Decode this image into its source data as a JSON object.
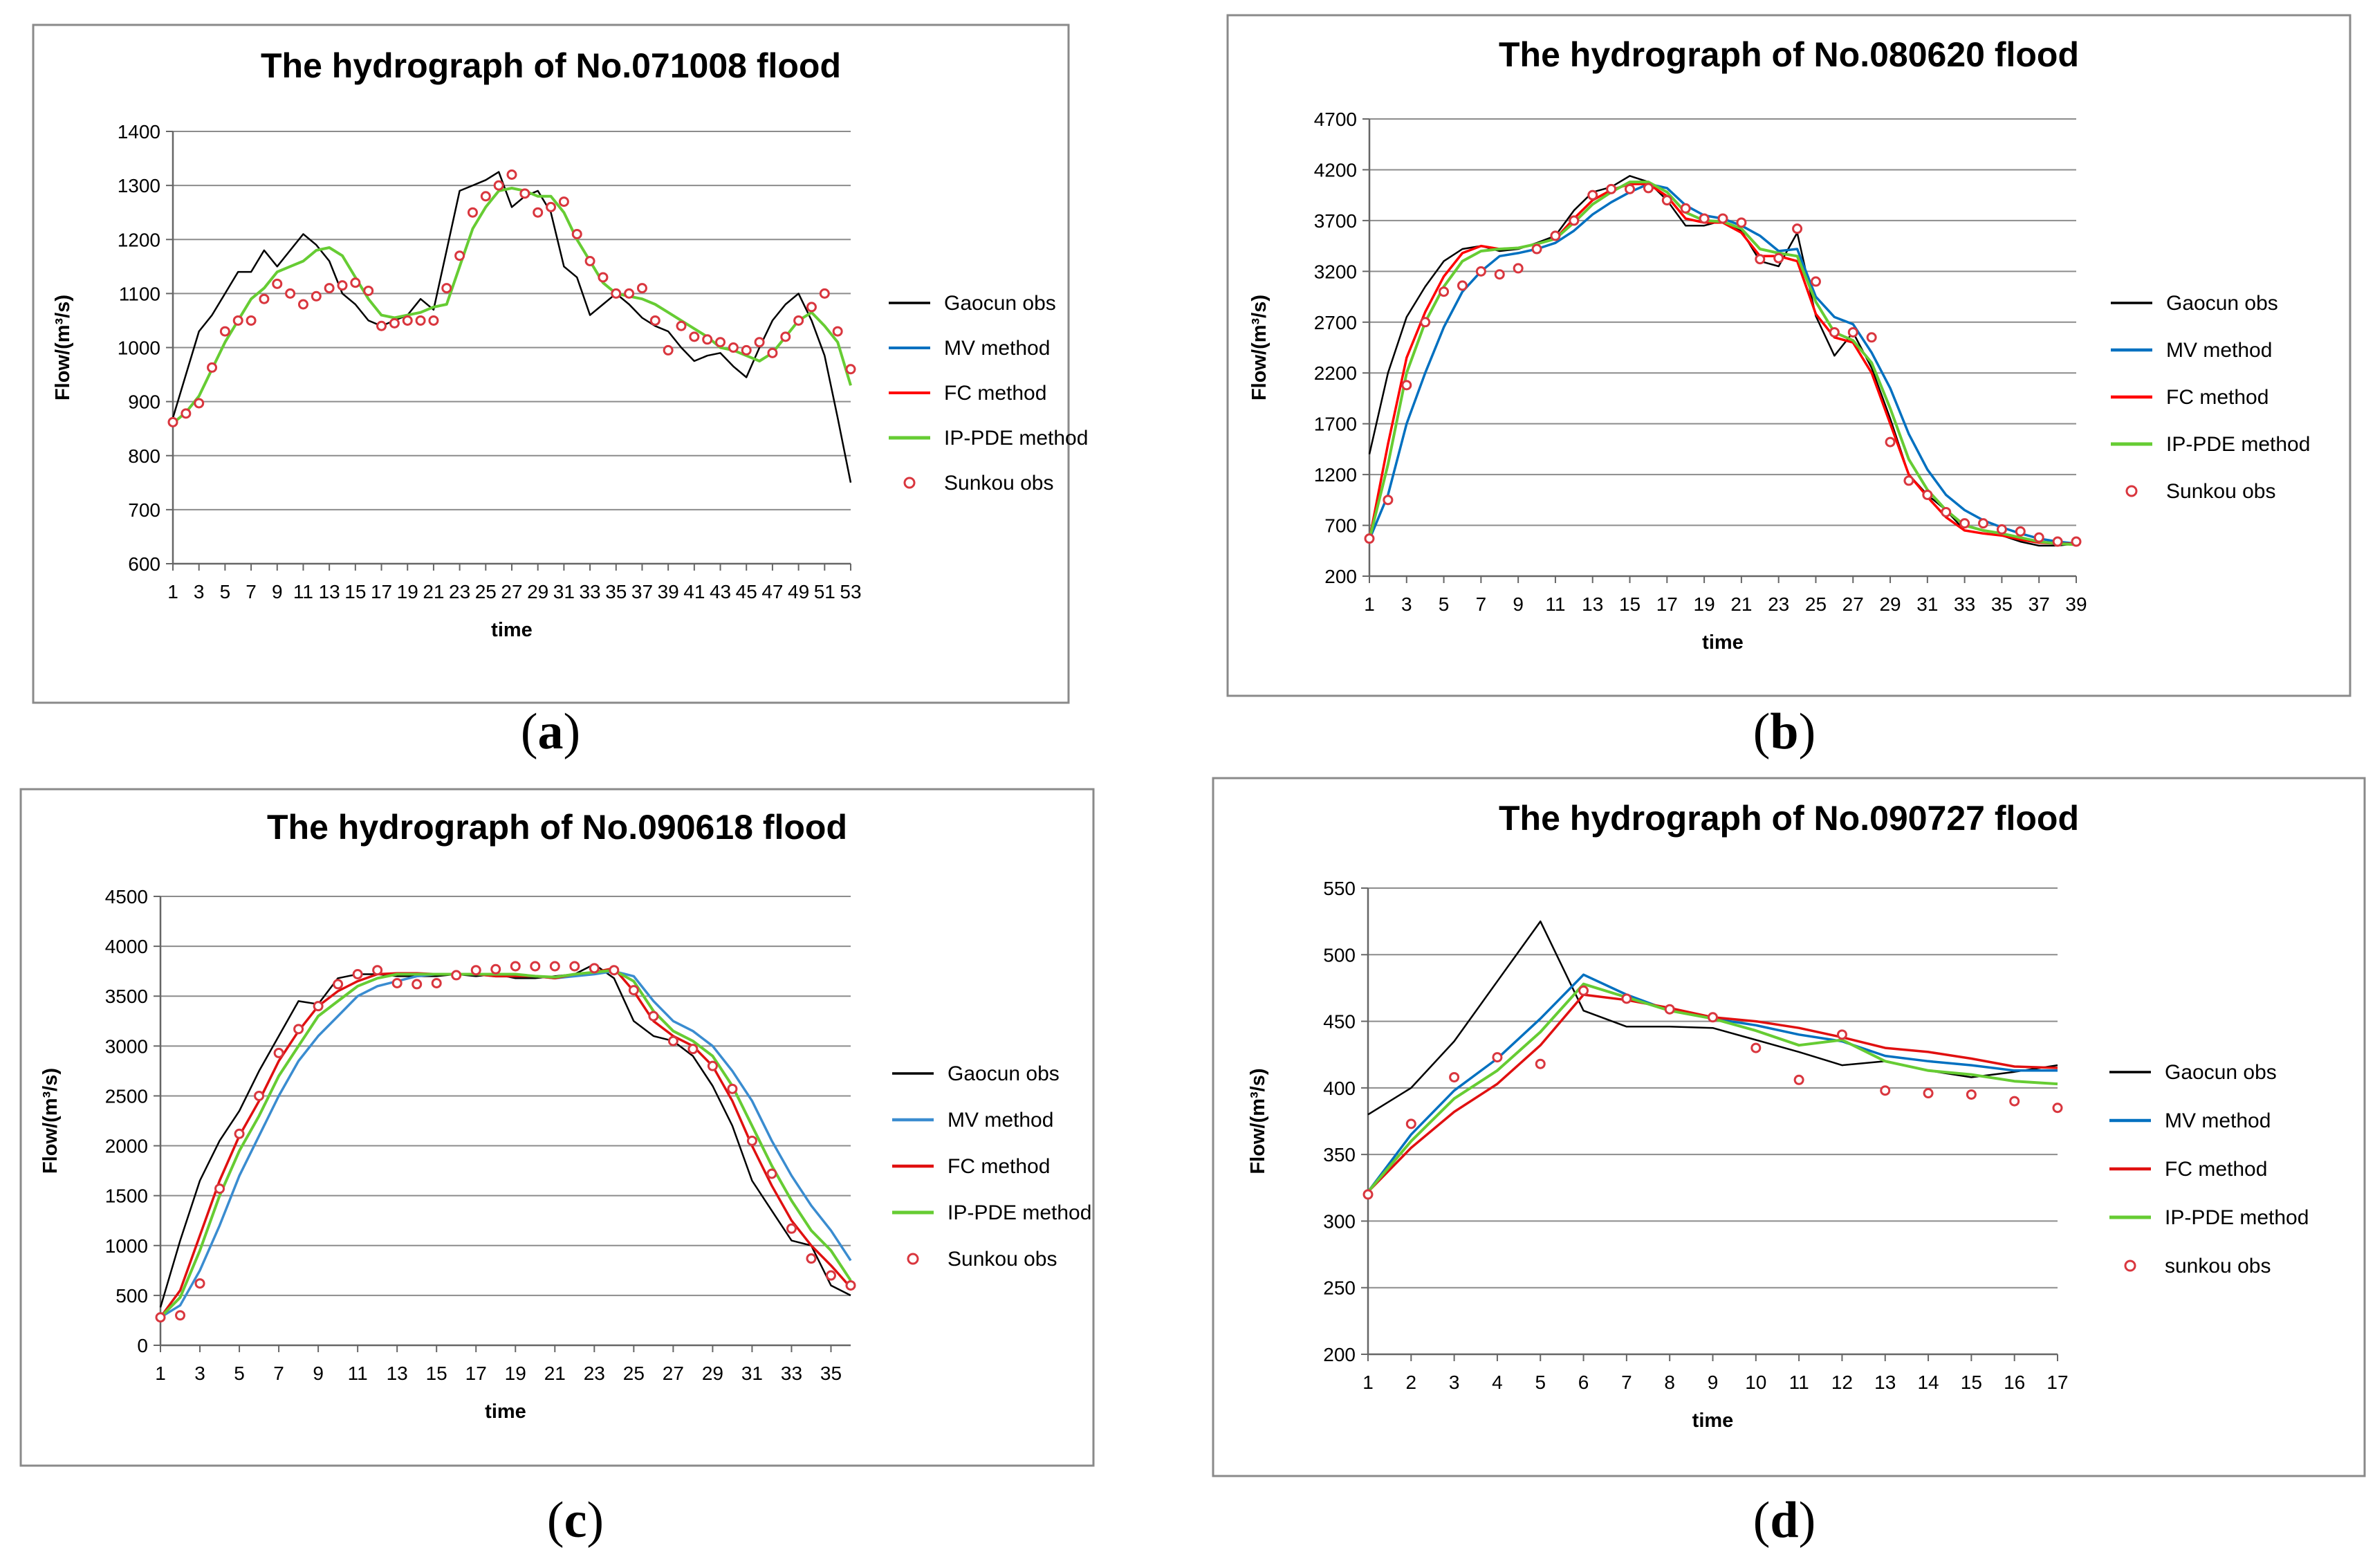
{
  "chart_data": [
    {
      "type": "line",
      "caption": "a",
      "title": "The hydrograph of  No.071008 flood",
      "xlabel": "time",
      "ylabel": "Flow/(m³/s)",
      "ylim": [
        600,
        1400
      ],
      "yticks": [
        600,
        700,
        800,
        900,
        1000,
        1100,
        1200,
        1300,
        1400
      ],
      "xlim": [
        1,
        53
      ],
      "x_tick_labels": [
        "1",
        "3",
        "5",
        "7",
        "9",
        "11",
        "13",
        "15",
        "17",
        "19",
        "21",
        "23",
        "25",
        "27",
        "29",
        "31",
        "33",
        "35",
        "37",
        "39",
        "41",
        "43",
        "45",
        "47",
        "49",
        "51",
        "53"
      ],
      "grid": "horizontal",
      "legend_position": "right",
      "series": [
        {
          "name": "Gaocun obs",
          "color": "#000000",
          "style": "line",
          "width": 2.5,
          "values": [
            870,
            950,
            1030,
            1060,
            1100,
            1140,
            1140,
            1180,
            1150,
            1180,
            1210,
            1190,
            1160,
            1100,
            1080,
            1050,
            1040,
            1050,
            1060,
            1090,
            1070,
            1180,
            1290,
            1300,
            1310,
            1325,
            1260,
            1280,
            1290,
            1250,
            1150,
            1130,
            1060,
            1080,
            1100,
            1080,
            1055,
            1040,
            1030,
            1000,
            975,
            985,
            990,
            965,
            945,
            1000,
            1050,
            1080,
            1100,
            1050,
            985,
            870,
            750
          ]
        },
        {
          "name": "MV method",
          "color": "#0070C0",
          "style": "line",
          "width": 3,
          "values": [
            860,
            880,
            910,
            960,
            1010,
            1050,
            1090,
            1110,
            1140,
            1150,
            1160,
            1180,
            1185,
            1170,
            1130,
            1090,
            1060,
            1055,
            1060,
            1065,
            1075,
            1080,
            1150,
            1220,
            1260,
            1290,
            1295,
            1290,
            1280,
            1280,
            1250,
            1200,
            1160,
            1120,
            1100,
            1095,
            1090,
            1080,
            1065,
            1050,
            1035,
            1020,
            1000,
            995,
            985,
            975,
            990,
            1020,
            1050,
            1065,
            1040,
            1010,
            930
          ]
        },
        {
          "name": "FC method",
          "color": "#FF0000",
          "style": "line",
          "width": 3,
          "values": [
            860,
            880,
            910,
            960,
            1010,
            1050,
            1090,
            1110,
            1140,
            1150,
            1160,
            1180,
            1185,
            1170,
            1130,
            1090,
            1060,
            1055,
            1060,
            1065,
            1075,
            1080,
            1150,
            1220,
            1260,
            1290,
            1295,
            1290,
            1280,
            1280,
            1250,
            1200,
            1160,
            1120,
            1100,
            1095,
            1090,
            1080,
            1065,
            1050,
            1035,
            1020,
            1000,
            995,
            985,
            975,
            990,
            1020,
            1050,
            1065,
            1040,
            1010,
            930
          ]
        },
        {
          "name": "IP-PDE method",
          "color": "#66CC33",
          "style": "line",
          "width": 4,
          "values": [
            860,
            880,
            910,
            960,
            1010,
            1050,
            1090,
            1110,
            1140,
            1150,
            1160,
            1180,
            1185,
            1170,
            1130,
            1090,
            1060,
            1055,
            1060,
            1065,
            1075,
            1080,
            1150,
            1220,
            1260,
            1290,
            1295,
            1290,
            1280,
            1280,
            1250,
            1200,
            1160,
            1120,
            1100,
            1095,
            1090,
            1080,
            1065,
            1050,
            1035,
            1020,
            1000,
            995,
            985,
            975,
            990,
            1020,
            1050,
            1065,
            1040,
            1010,
            930
          ]
        },
        {
          "name": "Sunkou obs",
          "color": "#D9363E",
          "style": "marker",
          "values": [
            862,
            878,
            897,
            963,
            1030,
            1050,
            1050,
            1090,
            1118,
            1100,
            1080,
            1095,
            1110,
            1115,
            1120,
            1105,
            1040,
            1045,
            1050,
            1050,
            1050,
            1110,
            1170,
            1250,
            1280,
            1300,
            1320,
            1285,
            1250,
            1260,
            1270,
            1210,
            1160,
            1130,
            1100,
            1100,
            1110,
            1050,
            995,
            1040,
            1020,
            1015,
            1010,
            1000,
            995,
            1010,
            990,
            1020,
            1050,
            1075,
            1100,
            1030,
            960
          ]
        }
      ]
    },
    {
      "type": "line",
      "caption": "b",
      "title": "The hydrograph of  No.080620 flood",
      "xlabel": "time",
      "ylabel": "Flow/(m³/s)",
      "ylim": [
        200,
        4700
      ],
      "yticks": [
        200,
        700,
        1200,
        1700,
        2200,
        2700,
        3200,
        3700,
        4200,
        4700
      ],
      "xlim": [
        1,
        39
      ],
      "x_tick_labels": [
        "1",
        "3",
        "5",
        "7",
        "9",
        "11",
        "13",
        "15",
        "17",
        "19",
        "21",
        "23",
        "25",
        "27",
        "29",
        "31",
        "33",
        "35",
        "37",
        "39"
      ],
      "grid": "horizontal",
      "legend_position": "right",
      "series": [
        {
          "name": "Gaocun obs",
          "color": "#000000",
          "style": "line",
          "width": 2.5,
          "values": [
            1400,
            2200,
            2750,
            3050,
            3300,
            3420,
            3450,
            3400,
            3420,
            3480,
            3550,
            3800,
            3980,
            4030,
            4140,
            4080,
            3900,
            3650,
            3650,
            3700,
            3600,
            3300,
            3250,
            3580,
            2760,
            2370,
            2600,
            2250,
            1750,
            1200,
            1000,
            850,
            650,
            620,
            600,
            540,
            500,
            500,
            520
          ]
        },
        {
          "name": "MV method",
          "color": "#0070C0",
          "style": "line",
          "width": 3.5,
          "values": [
            560,
            1000,
            1700,
            2200,
            2650,
            3000,
            3200,
            3350,
            3380,
            3420,
            3480,
            3600,
            3760,
            3880,
            3980,
            4060,
            4020,
            3850,
            3750,
            3720,
            3650,
            3550,
            3400,
            3420,
            2950,
            2750,
            2680,
            2400,
            2050,
            1600,
            1250,
            1000,
            850,
            750,
            680,
            620,
            570,
            540,
            520
          ]
        },
        {
          "name": "FC method",
          "color": "#FF0000",
          "style": "line",
          "width": 3.5,
          "values": [
            560,
            1500,
            2350,
            2800,
            3150,
            3380,
            3450,
            3420,
            3430,
            3470,
            3520,
            3720,
            3900,
            4000,
            4060,
            4060,
            3940,
            3720,
            3680,
            3680,
            3580,
            3350,
            3350,
            3300,
            2780,
            2550,
            2500,
            2200,
            1700,
            1200,
            980,
            780,
            650,
            620,
            600,
            560,
            530,
            520,
            520
          ]
        },
        {
          "name": "IP-PDE method",
          "color": "#66CC33",
          "style": "line",
          "width": 4,
          "values": [
            560,
            1300,
            2200,
            2700,
            3050,
            3300,
            3400,
            3420,
            3430,
            3470,
            3520,
            3680,
            3860,
            3980,
            4080,
            4080,
            3980,
            3780,
            3700,
            3690,
            3620,
            3420,
            3380,
            3350,
            2900,
            2600,
            2520,
            2300,
            1850,
            1350,
            1050,
            850,
            700,
            650,
            620,
            580,
            540,
            520,
            510
          ]
        },
        {
          "name": "Sunkou obs",
          "color": "#D9363E",
          "style": "marker",
          "values": [
            570,
            950,
            2080,
            2700,
            3000,
            3060,
            3200,
            3170,
            3230,
            3420,
            3550,
            3700,
            3950,
            4010,
            4010,
            4020,
            3900,
            3820,
            3720,
            3720,
            3680,
            3320,
            3330,
            3620,
            3100,
            2600,
            2600,
            2550,
            1520,
            1140,
            1000,
            830,
            720,
            720,
            660,
            640,
            580,
            540,
            540
          ]
        }
      ]
    },
    {
      "type": "line",
      "caption": "c",
      "title": "The hydrograph of  No.090618 flood",
      "xlabel": "time",
      "ylabel": "Flow/(m³/s)",
      "ylim": [
        0,
        4500
      ],
      "yticks": [
        0,
        500,
        1000,
        1500,
        2000,
        2500,
        3000,
        3500,
        4000,
        4500
      ],
      "xlim": [
        1,
        36
      ],
      "x_tick_labels": [
        "1",
        "3",
        "5",
        "7",
        "9",
        "11",
        "13",
        "15",
        "17",
        "19",
        "21",
        "23",
        "25",
        "27",
        "29",
        "31",
        "33",
        "35"
      ],
      "grid": "horizontal",
      "legend_position": "right",
      "series": [
        {
          "name": "Gaocun obs",
          "color": "#000000",
          "style": "line",
          "width": 2.5,
          "values": [
            380,
            1050,
            1650,
            2050,
            2350,
            2750,
            3100,
            3450,
            3420,
            3680,
            3720,
            3720,
            3700,
            3700,
            3700,
            3720,
            3700,
            3720,
            3680,
            3680,
            3700,
            3720,
            3820,
            3680,
            3250,
            3100,
            3050,
            2900,
            2600,
            2200,
            1650,
            1350,
            1050,
            1000,
            600,
            500
          ]
        },
        {
          "name": "MV method",
          "color": "#3A8CD0",
          "style": "line",
          "width": 3.5,
          "values": [
            280,
            400,
            750,
            1200,
            1700,
            2100,
            2500,
            2850,
            3100,
            3300,
            3500,
            3600,
            3650,
            3700,
            3720,
            3720,
            3720,
            3700,
            3700,
            3700,
            3680,
            3700,
            3720,
            3750,
            3700,
            3450,
            3250,
            3150,
            3000,
            2750,
            2450,
            2050,
            1700,
            1400,
            1150,
            850
          ]
        },
        {
          "name": "FC method",
          "color": "#E01010",
          "style": "line",
          "width": 3.5,
          "values": [
            280,
            550,
            1100,
            1650,
            2100,
            2450,
            2850,
            3150,
            3400,
            3550,
            3650,
            3720,
            3730,
            3730,
            3720,
            3720,
            3720,
            3700,
            3700,
            3700,
            3680,
            3720,
            3740,
            3780,
            3550,
            3250,
            3100,
            3000,
            2800,
            2450,
            2000,
            1600,
            1250,
            1000,
            800,
            580
          ]
        },
        {
          "name": "IP-PDE method",
          "color": "#66CC33",
          "style": "line",
          "width": 4,
          "values": [
            280,
            480,
            950,
            1500,
            1950,
            2300,
            2700,
            3000,
            3300,
            3450,
            3600,
            3680,
            3720,
            3720,
            3720,
            3720,
            3720,
            3720,
            3720,
            3700,
            3690,
            3720,
            3740,
            3760,
            3650,
            3350,
            3150,
            3050,
            2900,
            2600,
            2200,
            1800,
            1450,
            1150,
            950,
            650
          ]
        },
        {
          "name": "Sunkou obs",
          "color": "#D9363E",
          "style": "marker",
          "values": [
            280,
            300,
            620,
            1570,
            2120,
            2500,
            2930,
            3170,
            3400,
            3620,
            3720,
            3760,
            3630,
            3620,
            3630,
            3710,
            3760,
            3770,
            3800,
            3800,
            3800,
            3800,
            3780,
            3760,
            3560,
            3300,
            3050,
            2970,
            2800,
            2570,
            2050,
            1720,
            1170,
            870,
            700,
            600
          ]
        }
      ]
    },
    {
      "type": "line",
      "caption": "d",
      "title": "The hydrograph of  No.090727 flood",
      "xlabel": "time",
      "ylabel": "Flow/(m³/s)",
      "ylim": [
        200,
        550
      ],
      "yticks": [
        200,
        250,
        300,
        350,
        400,
        450,
        500,
        550
      ],
      "xlim": [
        1,
        17
      ],
      "x_tick_labels": [
        "1",
        "2",
        "3",
        "4",
        "5",
        "6",
        "7",
        "8",
        "9",
        "10",
        "11",
        "12",
        "13",
        "14",
        "15",
        "16",
        "17"
      ],
      "grid": "horizontal",
      "legend_position": "right",
      "series": [
        {
          "name": "Gaocun obs",
          "color": "#000000",
          "style": "line",
          "width": 2.5,
          "values": [
            380,
            400,
            435,
            480,
            525,
            458,
            446,
            446,
            445,
            436,
            427,
            417,
            420,
            413,
            408,
            412,
            417
          ]
        },
        {
          "name": "MV method",
          "color": "#0070C0",
          "style": "line",
          "width": 3.5,
          "values": [
            322,
            365,
            398,
            422,
            452,
            485,
            470,
            458,
            452,
            447,
            440,
            435,
            424,
            420,
            417,
            413,
            413
          ]
        },
        {
          "name": "FC method",
          "color": "#E01010",
          "style": "line",
          "width": 3.5,
          "values": [
            322,
            355,
            382,
            403,
            432,
            470,
            466,
            460,
            453,
            450,
            445,
            438,
            430,
            427,
            422,
            416,
            415
          ]
        },
        {
          "name": "IP-PDE method",
          "color": "#66CC33",
          "style": "line",
          "width": 4,
          "values": [
            322,
            360,
            392,
            413,
            442,
            478,
            468,
            458,
            452,
            443,
            432,
            436,
            420,
            413,
            410,
            405,
            403
          ]
        },
        {
          "name": "sunkou obs",
          "color": "#D9363E",
          "style": "marker",
          "values": [
            320,
            373,
            408,
            423,
            418,
            473,
            467,
            459,
            453,
            430,
            406,
            440,
            398,
            396,
            395,
            390,
            385
          ]
        }
      ]
    }
  ]
}
